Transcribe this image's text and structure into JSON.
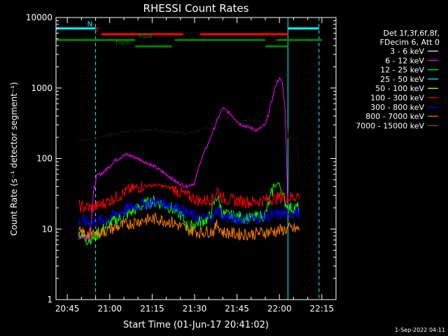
{
  "chart_data": {
    "type": "line",
    "title": "RHESSI Count Rates",
    "xlabel": "Start Time (01-Jun-17 20:41:02)",
    "ylabel": "Count Rate (s⁻¹ detector segment⁻¹)",
    "yscale": "log",
    "ylim": [
      1,
      10000
    ],
    "xlim": [
      "20:41",
      "22:20"
    ],
    "x_ticks": [
      "20:45",
      "21:00",
      "21:15",
      "21:30",
      "21:45",
      "22:00",
      "22:15"
    ],
    "y_ticks": [
      "1",
      "10",
      "100",
      "1000",
      "10000"
    ],
    "grid": false,
    "legend_position": "right",
    "legend_header": [
      "Det 1f,3f,6f,8f,",
      "FDecim 6, Att 0"
    ],
    "timestamp": "1-Sep-2022 04:11",
    "vertical_markers": [
      {
        "type": "solid",
        "color": "#00ffff",
        "x": "20:41"
      },
      {
        "type": "dashed",
        "color": "#00ffff",
        "x": "20:55"
      },
      {
        "type": "solid",
        "color": "#00ffff",
        "x": "22:03"
      },
      {
        "type": "dashed",
        "color": "#00ffff",
        "x": "22:14"
      }
    ],
    "status_bars": [
      {
        "label": "N",
        "color": "#00ffff",
        "y": 7000,
        "segments": [
          [
            "20:41",
            "20:55"
          ],
          [
            "22:03",
            "22:14"
          ]
        ]
      },
      {
        "label": "F",
        "color": "#ff0000",
        "y": 5800,
        "segments": [
          [
            "20:57",
            "21:26"
          ],
          [
            "21:32",
            "22:03"
          ]
        ]
      },
      {
        "label": "RD0",
        "color": "#008000",
        "y": 4800,
        "segments": [
          [
            "20:41",
            "21:09"
          ],
          [
            "21:23",
            "21:55"
          ],
          [
            "21:59",
            "22:15"
          ]
        ]
      },
      {
        "label": "RD6",
        "color": "#008000",
        "y": 3900,
        "segments": [
          [
            "21:09",
            "21:22"
          ],
          [
            "21:55",
            "22:03"
          ]
        ]
      }
    ],
    "series": [
      {
        "name": "3 - 6 keV",
        "color": "#000000",
        "x": [
          "20:49",
          "20:50",
          "20:55",
          "20:58",
          "21:05",
          "21:10",
          "21:15",
          "21:20",
          "21:24",
          "21:28",
          "21:32",
          "21:34",
          "21:37",
          "21:40",
          "21:43",
          "21:46",
          "21:49",
          "21:52",
          "21:55",
          "21:58",
          "22:00",
          "22:01",
          "22:02",
          "22:03",
          "22:04",
          "22:06",
          "22:07"
        ],
        "values": [
          180,
          185,
          190,
          210,
          240,
          250,
          255,
          248,
          235,
          230,
          245,
          270,
          320,
          400,
          380,
          330,
          360,
          340,
          310,
          500,
          700,
          800,
          760,
          200,
          195,
          190,
          55
        ]
      },
      {
        "name": "6 - 12 keV",
        "color": "#ff00ff",
        "x": [
          "20:49",
          "20:53",
          "20:55",
          "20:58",
          "21:02",
          "21:06",
          "21:10",
          "21:15",
          "21:20",
          "21:24",
          "21:27",
          "21:30",
          "21:32",
          "21:35",
          "21:38",
          "21:40",
          "21:43",
          "21:46",
          "21:49",
          "21:52",
          "21:55",
          "21:57",
          "21:59",
          "22:00",
          "22:01",
          "22:02",
          "22:03"
        ],
        "values": [
          8,
          8.5,
          55,
          65,
          95,
          115,
          100,
          80,
          60,
          45,
          40,
          45,
          90,
          170,
          350,
          520,
          420,
          310,
          280,
          250,
          300,
          600,
          1200,
          1350,
          1200,
          500,
          20
        ]
      },
      {
        "name": "12 - 25 keV",
        "color": "#00ff00",
        "x": [
          "20:49",
          "20:52",
          "20:55",
          "21:00",
          "21:05",
          "21:10",
          "21:15",
          "21:20",
          "21:25",
          "21:28",
          "21:30",
          "21:35",
          "21:38",
          "21:40",
          "21:45",
          "21:50",
          "21:55",
          "21:58",
          "22:00",
          "22:01",
          "22:03",
          "22:07"
        ],
        "values": [
          9,
          7,
          8,
          12,
          15,
          20,
          25,
          22,
          16,
          10,
          12,
          14,
          30,
          16,
          15,
          14,
          16,
          40,
          45,
          30,
          20,
          20
        ]
      },
      {
        "name": "25 - 50 keV",
        "color": "#00ffff",
        "x": [],
        "values": []
      },
      {
        "name": "50 - 100 keV",
        "color": "#ffff00",
        "x": [],
        "values": []
      },
      {
        "name": "100 - 300 keV",
        "color": "#ff0000",
        "x": [
          "20:49",
          "20:53",
          "20:57",
          "21:02",
          "21:07",
          "21:12",
          "21:17",
          "21:22",
          "21:27",
          "21:32",
          "21:37",
          "21:38",
          "21:40",
          "21:45",
          "21:50",
          "21:55",
          "22:00",
          "22:03",
          "22:07"
        ],
        "values": [
          21,
          20,
          22,
          28,
          36,
          41,
          42,
          38,
          30,
          25,
          27,
          36,
          27,
          25,
          24,
          26,
          28,
          28,
          30
        ]
      },
      {
        "name": "300 - 800 keV",
        "color": "#0000ff",
        "x": [
          "20:49",
          "20:53",
          "20:57",
          "21:02",
          "21:07",
          "21:12",
          "21:17",
          "21:22",
          "21:27",
          "21:32",
          "21:37",
          "21:38",
          "21:40",
          "21:45",
          "21:50",
          "21:55",
          "22:00",
          "22:03",
          "22:07"
        ],
        "values": [
          13,
          12.5,
          13,
          16,
          20,
          23,
          24,
          22,
          17,
          14,
          15,
          20,
          15,
          14,
          14,
          15,
          16,
          17,
          17
        ]
      },
      {
        "name": "800 - 7000 keV",
        "color": "#ff8000",
        "x": [
          "20:49",
          "20:53",
          "20:57",
          "21:02",
          "21:07",
          "21:12",
          "21:17",
          "21:22",
          "21:27",
          "21:32",
          "21:37",
          "21:38",
          "21:40",
          "21:45",
          "21:50",
          "21:55",
          "22:00",
          "22:03",
          "22:07"
        ],
        "values": [
          9,
          8.5,
          9,
          10.5,
          12,
          13.5,
          14,
          12.5,
          10,
          9,
          9.5,
          12,
          9,
          8.5,
          8.5,
          9,
          9.5,
          10,
          10
        ]
      },
      {
        "name": "7000 - 15000 keV",
        "color": "#806000",
        "x": [],
        "values": []
      }
    ]
  }
}
